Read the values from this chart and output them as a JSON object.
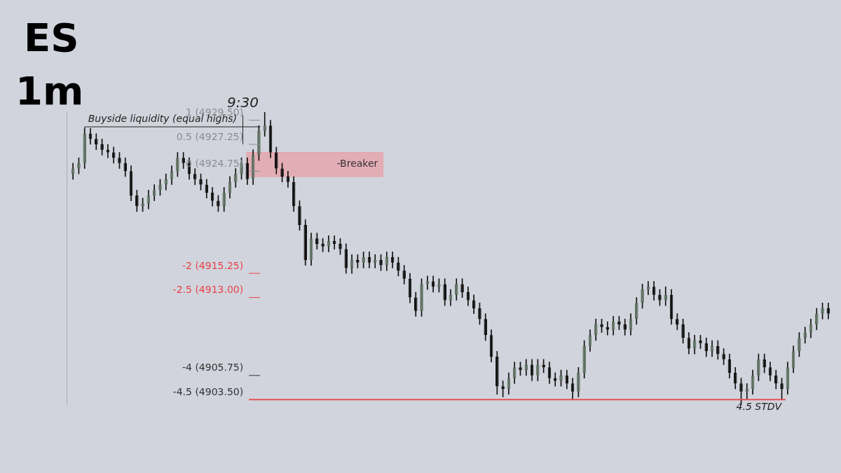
{
  "chart_data": {
    "type": "candlestick",
    "title": "ES",
    "subtitle": "1m",
    "categories": [
      null,
      null,
      null,
      null,
      null,
      null,
      null,
      null,
      null,
      null,
      null,
      null,
      null,
      null,
      null,
      null,
      null,
      null,
      null,
      null,
      null,
      null,
      null,
      null,
      null,
      null,
      null,
      null,
      null,
      null,
      null,
      null,
      null,
      null,
      null,
      null,
      null,
      null,
      null,
      null,
      null,
      null,
      null,
      null,
      null,
      null,
      null,
      null,
      null,
      null,
      null,
      null,
      null,
      null,
      null,
      null,
      null,
      null,
      null,
      null,
      null,
      null,
      null,
      null,
      null,
      null,
      null,
      null,
      null,
      null,
      null,
      null,
      null,
      null,
      null,
      null,
      null,
      null,
      null,
      null,
      null,
      null,
      null,
      null,
      null,
      null,
      null,
      null,
      null,
      null,
      null,
      null,
      null,
      null,
      null,
      null,
      null,
      null,
      null,
      null,
      null,
      null,
      null,
      null,
      null,
      null,
      null,
      null,
      null,
      null,
      null,
      null,
      null,
      null,
      null,
      null,
      null,
      null,
      null,
      null,
      null,
      null,
      null,
      null,
      null,
      null,
      null,
      null,
      null,
      null,
      null
    ],
    "ohlc": [
      [
        4924.5,
        4925.5,
        4924.0,
        4925.0
      ],
      [
        4925.0,
        4926.0,
        4924.5,
        4925.5
      ],
      [
        4925.5,
        4928.75,
        4925.0,
        4928.25
      ],
      [
        4928.25,
        4928.75,
        4927.25,
        4927.75
      ],
      [
        4927.75,
        4928.25,
        4926.75,
        4927.25
      ],
      [
        4927.25,
        4927.75,
        4926.25,
        4926.75
      ],
      [
        4926.75,
        4927.25,
        4926.0,
        4926.5
      ],
      [
        4926.5,
        4927.0,
        4925.5,
        4926.0
      ],
      [
        4926.0,
        4926.5,
        4925.0,
        4925.5
      ],
      [
        4925.5,
        4926.0,
        4924.25,
        4924.75
      ],
      [
        4924.75,
        4925.25,
        4922.0,
        4922.5
      ],
      [
        4922.5,
        4923.0,
        4921.0,
        4921.5
      ],
      [
        4921.5,
        4922.25,
        4921.0,
        4921.75
      ],
      [
        4921.75,
        4923.0,
        4921.25,
        4922.5
      ],
      [
        4922.5,
        4923.5,
        4922.0,
        4923.0
      ],
      [
        4923.0,
        4924.0,
        4922.5,
        4923.5
      ],
      [
        4923.5,
        4924.5,
        4923.0,
        4924.0
      ],
      [
        4924.0,
        4925.25,
        4923.5,
        4924.75
      ],
      [
        4924.75,
        4926.5,
        4924.25,
        4926.0
      ],
      [
        4926.0,
        4926.5,
        4925.0,
        4925.5
      ],
      [
        4925.5,
        4926.0,
        4924.0,
        4924.5
      ],
      [
        4924.5,
        4925.0,
        4923.5,
        4924.0
      ],
      [
        4924.0,
        4924.5,
        4923.0,
        4923.5
      ],
      [
        4923.5,
        4924.0,
        4922.25,
        4922.75
      ],
      [
        4922.75,
        4923.25,
        4921.5,
        4922.0
      ],
      [
        4922.0,
        4922.5,
        4921.0,
        4921.5
      ],
      [
        4921.5,
        4923.25,
        4921.0,
        4922.75
      ],
      [
        4922.75,
        4924.25,
        4922.25,
        4923.75
      ],
      [
        4923.75,
        4925.0,
        4923.25,
        4924.5
      ],
      [
        4924.5,
        4926.0,
        4924.0,
        4925.5
      ],
      [
        4925.5,
        4926.0,
        4923.5,
        4924.0
      ],
      [
        4924.0,
        4926.75,
        4923.5,
        4926.25
      ],
      [
        4926.25,
        4929.0,
        4925.75,
        4928.5
      ],
      [
        4928.5,
        4930.25,
        4928.0,
        4929.0
      ],
      [
        4929.0,
        4929.5,
        4926.0,
        4926.5
      ],
      [
        4926.5,
        4927.0,
        4924.5,
        4925.0
      ],
      [
        4925.0,
        4925.5,
        4923.75,
        4924.25
      ],
      [
        4924.25,
        4924.75,
        4923.25,
        4923.75
      ],
      [
        4923.75,
        4924.25,
        4921.0,
        4921.5
      ],
      [
        4921.5,
        4922.0,
        4919.25,
        4919.75
      ],
      [
        4919.75,
        4920.25,
        4916.0,
        4916.5
      ],
      [
        4916.5,
        4919.0,
        4916.0,
        4918.5
      ],
      [
        4918.5,
        4919.0,
        4917.5,
        4918.0
      ],
      [
        4918.0,
        4918.5,
        4917.25,
        4917.75
      ],
      [
        4917.75,
        4918.75,
        4917.25,
        4918.25
      ],
      [
        4918.25,
        4918.75,
        4917.5,
        4918.0
      ],
      [
        4918.0,
        4918.5,
        4917.0,
        4917.5
      ],
      [
        4917.5,
        4918.0,
        4915.25,
        4915.75
      ],
      [
        4915.75,
        4917.0,
        4915.25,
        4916.5
      ],
      [
        4916.5,
        4917.0,
        4915.75,
        4916.25
      ],
      [
        4916.25,
        4917.25,
        4915.75,
        4916.75
      ],
      [
        4916.75,
        4917.25,
        4915.75,
        4916.25
      ],
      [
        4916.25,
        4917.0,
        4915.75,
        4916.5
      ],
      [
        4916.5,
        4917.0,
        4915.5,
        4916.0
      ],
      [
        4916.0,
        4917.25,
        4915.5,
        4916.75
      ],
      [
        4916.75,
        4917.25,
        4915.75,
        4916.25
      ],
      [
        4916.25,
        4916.75,
        4915.0,
        4915.5
      ],
      [
        4915.5,
        4916.0,
        4914.25,
        4914.75
      ],
      [
        4914.75,
        4915.25,
        4912.5,
        4913.0
      ],
      [
        4913.0,
        4913.5,
        4911.25,
        4911.75
      ],
      [
        4911.75,
        4914.75,
        4911.25,
        4914.25
      ],
      [
        4914.25,
        4915.0,
        4913.75,
        4914.5
      ],
      [
        4914.5,
        4915.0,
        4913.5,
        4914.0
      ],
      [
        4914.0,
        4914.75,
        4913.5,
        4914.25
      ],
      [
        4914.25,
        4914.75,
        4912.25,
        4912.75
      ],
      [
        4912.75,
        4913.75,
        4912.25,
        4913.25
      ],
      [
        4913.25,
        4914.75,
        4912.75,
        4914.25
      ],
      [
        4914.25,
        4914.75,
        4913.0,
        4913.5
      ],
      [
        4913.5,
        4914.0,
        4912.25,
        4912.75
      ],
      [
        4912.75,
        4913.25,
        4911.5,
        4912.0
      ],
      [
        4912.0,
        4912.5,
        4910.5,
        4911.0
      ],
      [
        4911.0,
        4911.5,
        4909.0,
        4909.5
      ],
      [
        4909.5,
        4910.0,
        4907.0,
        4907.5
      ],
      [
        4907.5,
        4908.0,
        4904.0,
        4904.75
      ],
      [
        4904.75,
        4905.25,
        4903.75,
        4904.5
      ],
      [
        4904.5,
        4906.0,
        4904.0,
        4905.5
      ],
      [
        4905.5,
        4907.0,
        4905.0,
        4906.5
      ],
      [
        4906.5,
        4907.0,
        4905.75,
        4906.25
      ],
      [
        4906.25,
        4907.25,
        4905.75,
        4906.75
      ],
      [
        4906.75,
        4907.25,
        4905.25,
        4905.75
      ],
      [
        4905.75,
        4907.25,
        4905.25,
        4906.75
      ],
      [
        4906.75,
        4907.25,
        4906.0,
        4906.5
      ],
      [
        4906.5,
        4907.0,
        4905.0,
        4905.5
      ],
      [
        4905.5,
        4906.0,
        4904.75,
        4905.25
      ],
      [
        4905.25,
        4906.25,
        4904.75,
        4905.75
      ],
      [
        4905.75,
        4906.25,
        4904.5,
        4905.0
      ],
      [
        4905.0,
        4905.5,
        4903.5,
        4904.25
      ],
      [
        4904.25,
        4906.5,
        4903.75,
        4906.0
      ],
      [
        4906.0,
        4909.0,
        4905.5,
        4908.5
      ],
      [
        4908.5,
        4910.0,
        4908.0,
        4909.5
      ],
      [
        4909.5,
        4911.0,
        4909.0,
        4910.5
      ],
      [
        4910.5,
        4911.0,
        4909.75,
        4910.25
      ],
      [
        4910.25,
        4910.75,
        4909.5,
        4910.0
      ],
      [
        4910.0,
        4911.25,
        4909.5,
        4910.75
      ],
      [
        4910.75,
        4911.25,
        4910.0,
        4910.5
      ],
      [
        4910.5,
        4911.0,
        4909.5,
        4910.0
      ],
      [
        4910.0,
        4911.5,
        4909.5,
        4911.0
      ],
      [
        4911.0,
        4913.0,
        4910.5,
        4912.5
      ],
      [
        4912.5,
        4914.25,
        4912.0,
        4913.75
      ],
      [
        4913.75,
        4914.5,
        4913.25,
        4914.0
      ],
      [
        4914.0,
        4914.5,
        4912.75,
        4913.25
      ],
      [
        4913.25,
        4913.75,
        4912.25,
        4912.75
      ],
      [
        4912.75,
        4914.0,
        4912.25,
        4913.25
      ],
      [
        4913.25,
        4913.75,
        4910.5,
        4911.0
      ],
      [
        4911.0,
        4911.5,
        4910.0,
        4910.5
      ],
      [
        4910.5,
        4911.0,
        4908.75,
        4909.25
      ],
      [
        4909.25,
        4909.75,
        4907.75,
        4908.25
      ],
      [
        4908.25,
        4909.5,
        4907.75,
        4909.0
      ],
      [
        4909.0,
        4909.5,
        4908.25,
        4908.75
      ],
      [
        4908.75,
        4909.25,
        4907.5,
        4908.0
      ],
      [
        4908.0,
        4909.0,
        4907.5,
        4908.5
      ],
      [
        4908.5,
        4909.0,
        4907.25,
        4907.75
      ],
      [
        4907.75,
        4908.25,
        4906.75,
        4907.25
      ],
      [
        4907.25,
        4907.75,
        4905.5,
        4906.0
      ],
      [
        4906.0,
        4906.5,
        4904.5,
        4905.0
      ],
      [
        4905.0,
        4905.5,
        4903.0,
        4904.25
      ],
      [
        4904.25,
        4905.0,
        4903.5,
        4904.5
      ],
      [
        4904.5,
        4906.25,
        4904.0,
        4905.75
      ],
      [
        4905.75,
        4907.75,
        4905.25,
        4907.25
      ],
      [
        4907.25,
        4907.75,
        4906.0,
        4906.5
      ],
      [
        4906.5,
        4907.0,
        4905.25,
        4905.75
      ],
      [
        4905.75,
        4906.25,
        4904.5,
        4905.0
      ],
      [
        4905.0,
        4905.5,
        4903.5,
        4904.5
      ],
      [
        4904.5,
        4907.0,
        4904.0,
        4906.5
      ],
      [
        4906.5,
        4908.5,
        4906.0,
        4908.0
      ],
      [
        4908.0,
        4909.75,
        4907.5,
        4909.25
      ],
      [
        4909.25,
        4910.25,
        4908.75,
        4909.75
      ],
      [
        4909.75,
        4911.0,
        4909.25,
        4910.5
      ],
      [
        4910.5,
        4912.0,
        4910.0,
        4911.5
      ],
      [
        4911.5,
        4912.5,
        4911.0,
        4912.0
      ],
      [
        4912.0,
        4912.5,
        4911.0,
        4911.5
      ]
    ],
    "colors": [
      "#5f7262",
      "#5f7262",
      "#5f7262",
      "#111111",
      "#111111",
      "#111111",
      "#111111",
      "#111111",
      "#111111",
      "#111111",
      "#111111",
      "#111111",
      "#5f7262",
      "#5f7262",
      "#5f7262",
      "#5f7262",
      "#5f7262",
      "#5f7262",
      "#5f7262",
      "#111111",
      "#111111",
      "#111111",
      "#111111",
      "#111111",
      "#111111",
      "#111111",
      "#5f7262",
      "#5f7262",
      "#5f7262",
      "#5f7262",
      "#111111",
      "#5f7262",
      "#5f7262",
      "#5f7262",
      "#111111",
      "#111111",
      "#111111",
      "#111111",
      "#111111",
      "#111111",
      "#111111",
      "#5f7262",
      "#111111",
      "#111111",
      "#5f7262",
      "#111111",
      "#111111",
      "#111111",
      "#5f7262",
      "#111111",
      "#5f7262",
      "#111111",
      "#5f7262",
      "#111111",
      "#5f7262",
      "#111111",
      "#111111",
      "#111111",
      "#111111",
      "#111111",
      "#5f7262",
      "#5f7262",
      "#111111",
      "#5f7262",
      "#111111",
      "#5f7262",
      "#5f7262",
      "#111111",
      "#111111",
      "#111111",
      "#111111",
      "#111111",
      "#111111",
      "#111111",
      "#111111",
      "#5f7262",
      "#5f7262",
      "#111111",
      "#5f7262",
      "#111111",
      "#5f7262",
      "#111111",
      "#111111",
      "#111111",
      "#5f7262",
      "#111111",
      "#111111",
      "#5f7262",
      "#5f7262",
      "#5f7262",
      "#5f7262",
      "#111111",
      "#111111",
      "#5f7262",
      "#111111",
      "#111111",
      "#5f7262",
      "#5f7262",
      "#5f7262",
      "#5f7262",
      "#111111",
      "#111111",
      "#5f7262",
      "#111111",
      "#111111",
      "#111111",
      "#111111",
      "#5f7262",
      "#111111",
      "#111111",
      "#5f7262",
      "#111111",
      "#111111",
      "#111111",
      "#111111",
      "#111111",
      "#5f7262",
      "#5f7262",
      "#5f7262",
      "#111111",
      "#111111",
      "#111111",
      "#111111",
      "#5f7262",
      "#5f7262",
      "#5f7262",
      "#5f7262",
      "#5f7262",
      "#5f7262",
      "#5f7262",
      "#111111"
    ],
    "ylim": [
      4903.0,
      4930.25
    ],
    "tick_labels": false,
    "ref_lines": [
      {
        "axis": "y",
        "value": 4929.5,
        "label": "1 (4929.50)",
        "color": "#8a8d96"
      },
      {
        "axis": "y",
        "value": 4927.25,
        "label": "0.5 (4927.25)",
        "color": "#8a8d96"
      },
      {
        "axis": "y",
        "value": 4924.75,
        "label": "0 (4924.75)",
        "color": "#8a8d96"
      },
      {
        "axis": "y",
        "value": 4915.25,
        "label": "-2 (4915.25)",
        "color": "#e8434d"
      },
      {
        "axis": "y",
        "value": 4913.0,
        "label": "-2.5 (4913.00)",
        "color": "#e8434d"
      },
      {
        "axis": "y",
        "value": 4905.75,
        "label": "-4 (4905.75)",
        "color": "#333333"
      },
      {
        "axis": "y",
        "value": 4903.5,
        "label": "-4.5 (4903.50)",
        "color": "#e8505b",
        "line_style": "solid"
      }
    ],
    "bands": [
      {
        "axis": "y",
        "from": 4924.25,
        "to": 4926.5,
        "label": "-Breaker",
        "color": "#e8a0a8"
      }
    ],
    "annotations": [
      "9:30",
      "Buyside liquidity (equal highs)",
      {
        "text": "4.5 STDV",
        "y": 4903.5
      }
    ]
  }
}
